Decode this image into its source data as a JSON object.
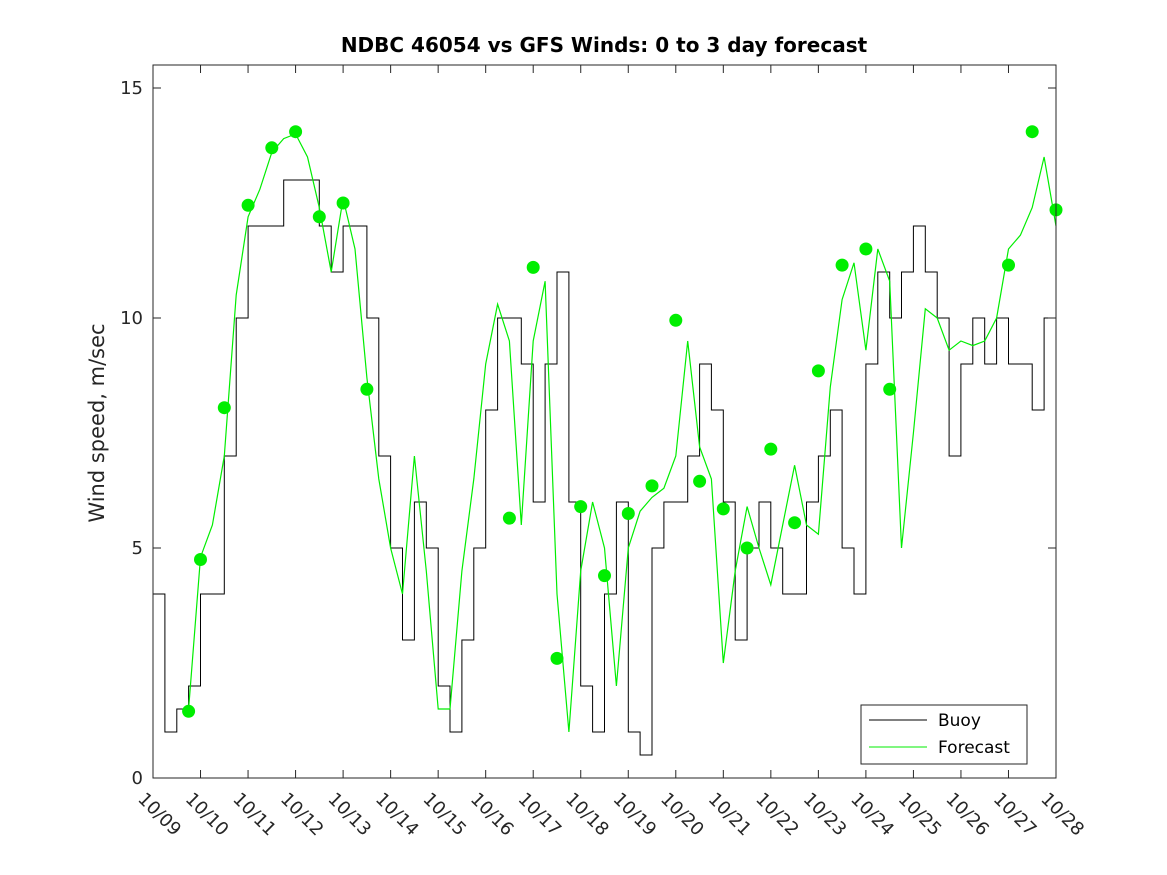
{
  "chart_data": {
    "type": "line",
    "title": "NDBC 46054 vs GFS Winds: 0 to 3 day forecast",
    "xlabel": "",
    "ylabel": "Wind speed, m/sec",
    "xlim": [
      "10/09",
      "10/28"
    ],
    "ylim": [
      0,
      15.5
    ],
    "x_ticks": [
      "10/09",
      "10/10",
      "10/11",
      "10/12",
      "10/13",
      "10/14",
      "10/15",
      "10/16",
      "10/17",
      "10/18",
      "10/19",
      "10/20",
      "10/21",
      "10/22",
      "10/23",
      "10/24",
      "10/25",
      "10/26",
      "10/27",
      "10/28"
    ],
    "y_ticks": [
      0,
      5,
      10,
      15
    ],
    "grid": false,
    "legend_position": "bottom-right",
    "colors": {
      "buoy": "#000000",
      "forecast": "#00ee00"
    },
    "series": [
      {
        "name": "Buoy",
        "style": "line",
        "x": [
          "10/09 00:00",
          "10/09 06:00",
          "10/09 12:00",
          "10/09 18:00",
          "10/10 00:00",
          "10/10 06:00",
          "10/10 12:00",
          "10/10 18:00",
          "10/11 00:00",
          "10/11 06:00",
          "10/11 12:00",
          "10/11 18:00",
          "10/12 00:00",
          "10/12 06:00",
          "10/12 12:00",
          "10/12 18:00",
          "10/13 00:00",
          "10/13 06:00",
          "10/13 12:00",
          "10/13 18:00",
          "10/14 00:00",
          "10/14 06:00",
          "10/14 12:00",
          "10/14 18:00",
          "10/15 00:00",
          "10/15 06:00",
          "10/15 12:00",
          "10/15 18:00",
          "10/16 00:00",
          "10/16 06:00",
          "10/16 12:00",
          "10/16 18:00",
          "10/17 00:00",
          "10/17 06:00",
          "10/17 12:00",
          "10/17 18:00",
          "10/18 00:00",
          "10/18 06:00",
          "10/18 12:00",
          "10/18 18:00",
          "10/19 00:00",
          "10/19 06:00",
          "10/19 12:00",
          "10/19 18:00",
          "10/20 00:00",
          "10/20 06:00",
          "10/20 12:00",
          "10/20 18:00",
          "10/21 00:00",
          "10/21 06:00",
          "10/21 12:00",
          "10/21 18:00",
          "10/22 00:00",
          "10/22 06:00",
          "10/22 12:00",
          "10/22 18:00",
          "10/23 00:00",
          "10/23 06:00",
          "10/23 12:00",
          "10/23 18:00",
          "10/24 00:00",
          "10/24 06:00",
          "10/24 12:00",
          "10/24 18:00",
          "10/25 00:00",
          "10/25 06:00",
          "10/25 12:00",
          "10/25 18:00",
          "10/26 00:00",
          "10/26 06:00",
          "10/26 12:00",
          "10/26 18:00",
          "10/27 00:00",
          "10/27 06:00",
          "10/27 12:00",
          "10/27 18:00",
          "10/28 00:00"
        ],
        "values": [
          4,
          1,
          1.5,
          2,
          4,
          4,
          7,
          10,
          12,
          12,
          12,
          13,
          13,
          13,
          12,
          11,
          12,
          12,
          10,
          7,
          5,
          3,
          6,
          5,
          2,
          1,
          3,
          5,
          8,
          10,
          10,
          9,
          6,
          9,
          11,
          6,
          2,
          1,
          4,
          6,
          1,
          0.5,
          5,
          6,
          6,
          7,
          9,
          8,
          6,
          3,
          5,
          6,
          5,
          4,
          4,
          6,
          7,
          8,
          5,
          4,
          9,
          11,
          10,
          11,
          12,
          11,
          10,
          7,
          9,
          10,
          9,
          10,
          9,
          9,
          8,
          10,
          12
        ]
      },
      {
        "name": "Forecast",
        "style": "line",
        "x": [
          "10/09 18:00",
          "10/10 00:00",
          "10/10 06:00",
          "10/10 12:00",
          "10/10 18:00",
          "10/11 00:00",
          "10/11 06:00",
          "10/11 12:00",
          "10/11 18:00",
          "10/12 00:00",
          "10/12 06:00",
          "10/12 12:00",
          "10/12 18:00",
          "10/13 00:00",
          "10/13 06:00",
          "10/13 12:00",
          "10/13 18:00",
          "10/14 00:00",
          "10/14 06:00",
          "10/14 12:00",
          "10/14 18:00",
          "10/15 00:00",
          "10/15 06:00",
          "10/15 12:00",
          "10/15 18:00",
          "10/16 00:00",
          "10/16 06:00",
          "10/16 12:00",
          "10/16 18:00",
          "10/17 00:00",
          "10/17 06:00",
          "10/17 12:00",
          "10/17 18:00",
          "10/18 00:00",
          "10/18 06:00",
          "10/18 12:00",
          "10/18 18:00",
          "10/19 00:00",
          "10/19 06:00",
          "10/19 12:00",
          "10/19 18:00",
          "10/20 00:00",
          "10/20 06:00",
          "10/20 12:00",
          "10/20 18:00",
          "10/21 00:00",
          "10/21 06:00",
          "10/21 12:00",
          "10/21 18:00",
          "10/22 00:00",
          "10/22 06:00",
          "10/22 12:00",
          "10/22 18:00",
          "10/23 00:00",
          "10/23 06:00",
          "10/23 12:00",
          "10/23 18:00",
          "10/24 00:00",
          "10/24 06:00",
          "10/24 12:00",
          "10/24 18:00",
          "10/25 00:00",
          "10/25 06:00",
          "10/25 12:00",
          "10/25 18:00",
          "10/26 00:00",
          "10/26 06:00",
          "10/26 12:00",
          "10/26 18:00",
          "10/27 00:00",
          "10/27 06:00",
          "10/27 12:00",
          "10/27 18:00",
          "10/28 00:00"
        ],
        "values": [
          1.5,
          4.8,
          5.5,
          7,
          10.5,
          12.2,
          12.8,
          13.6,
          13.9,
          14,
          13.5,
          12.4,
          11,
          12.6,
          11.5,
          8.7,
          6.5,
          5,
          4,
          7,
          4.5,
          1.5,
          1.5,
          4.5,
          6.5,
          9,
          10.3,
          9.5,
          5.5,
          9.5,
          10.8,
          4,
          1,
          4.5,
          6,
          5,
          2,
          5,
          5.8,
          6.1,
          6.3,
          7,
          9.5,
          7.2,
          6.5,
          2.5,
          4.5,
          5.9,
          5,
          4.2,
          5.5,
          6.8,
          5.5,
          5.3,
          8.5,
          10.4,
          11.2,
          9.3,
          11.5,
          10.8,
          5,
          7.5,
          10.2,
          10,
          9.3,
          9.5,
          9.4,
          9.5,
          10,
          11.5,
          11.8,
          12.4,
          13.5,
          12
        ]
      },
      {
        "name": "",
        "style": "markers",
        "x": [
          "10/09 18:00",
          "10/10 00:00",
          "10/10 12:00",
          "10/11 00:00",
          "10/11 12:00",
          "10/12 00:00",
          "10/12 12:00",
          "10/13 00:00",
          "10/13 12:00",
          "10/16 12:00",
          "10/17 00:00",
          "10/17 12:00",
          "10/18 00:00",
          "10/18 12:00",
          "10/19 00:00",
          "10/19 12:00",
          "10/20 00:00",
          "10/20 12:00",
          "10/21 00:00",
          "10/21 12:00",
          "10/22 00:00",
          "10/22 12:00",
          "10/23 00:00",
          "10/23 12:00",
          "10/24 00:00",
          "10/24 12:00",
          "10/27 00:00",
          "10/27 12:00",
          "10/28 00:00"
        ],
        "values": [
          1.45,
          4.75,
          8.05,
          12.45,
          13.7,
          14.05,
          12.2,
          12.5,
          8.45,
          5.65,
          11.1,
          2.6,
          5.9,
          4.4,
          5.75,
          6.35,
          9.95,
          6.45,
          5.85,
          5,
          7.15,
          5.55,
          8.85,
          11.15,
          11.5,
          8.45,
          11.15,
          14.05,
          12.35
        ]
      }
    ]
  },
  "legend": {
    "items": [
      {
        "label": "Buoy",
        "color": "#000000"
      },
      {
        "label": "Forecast",
        "color": "#00ee00"
      }
    ]
  }
}
